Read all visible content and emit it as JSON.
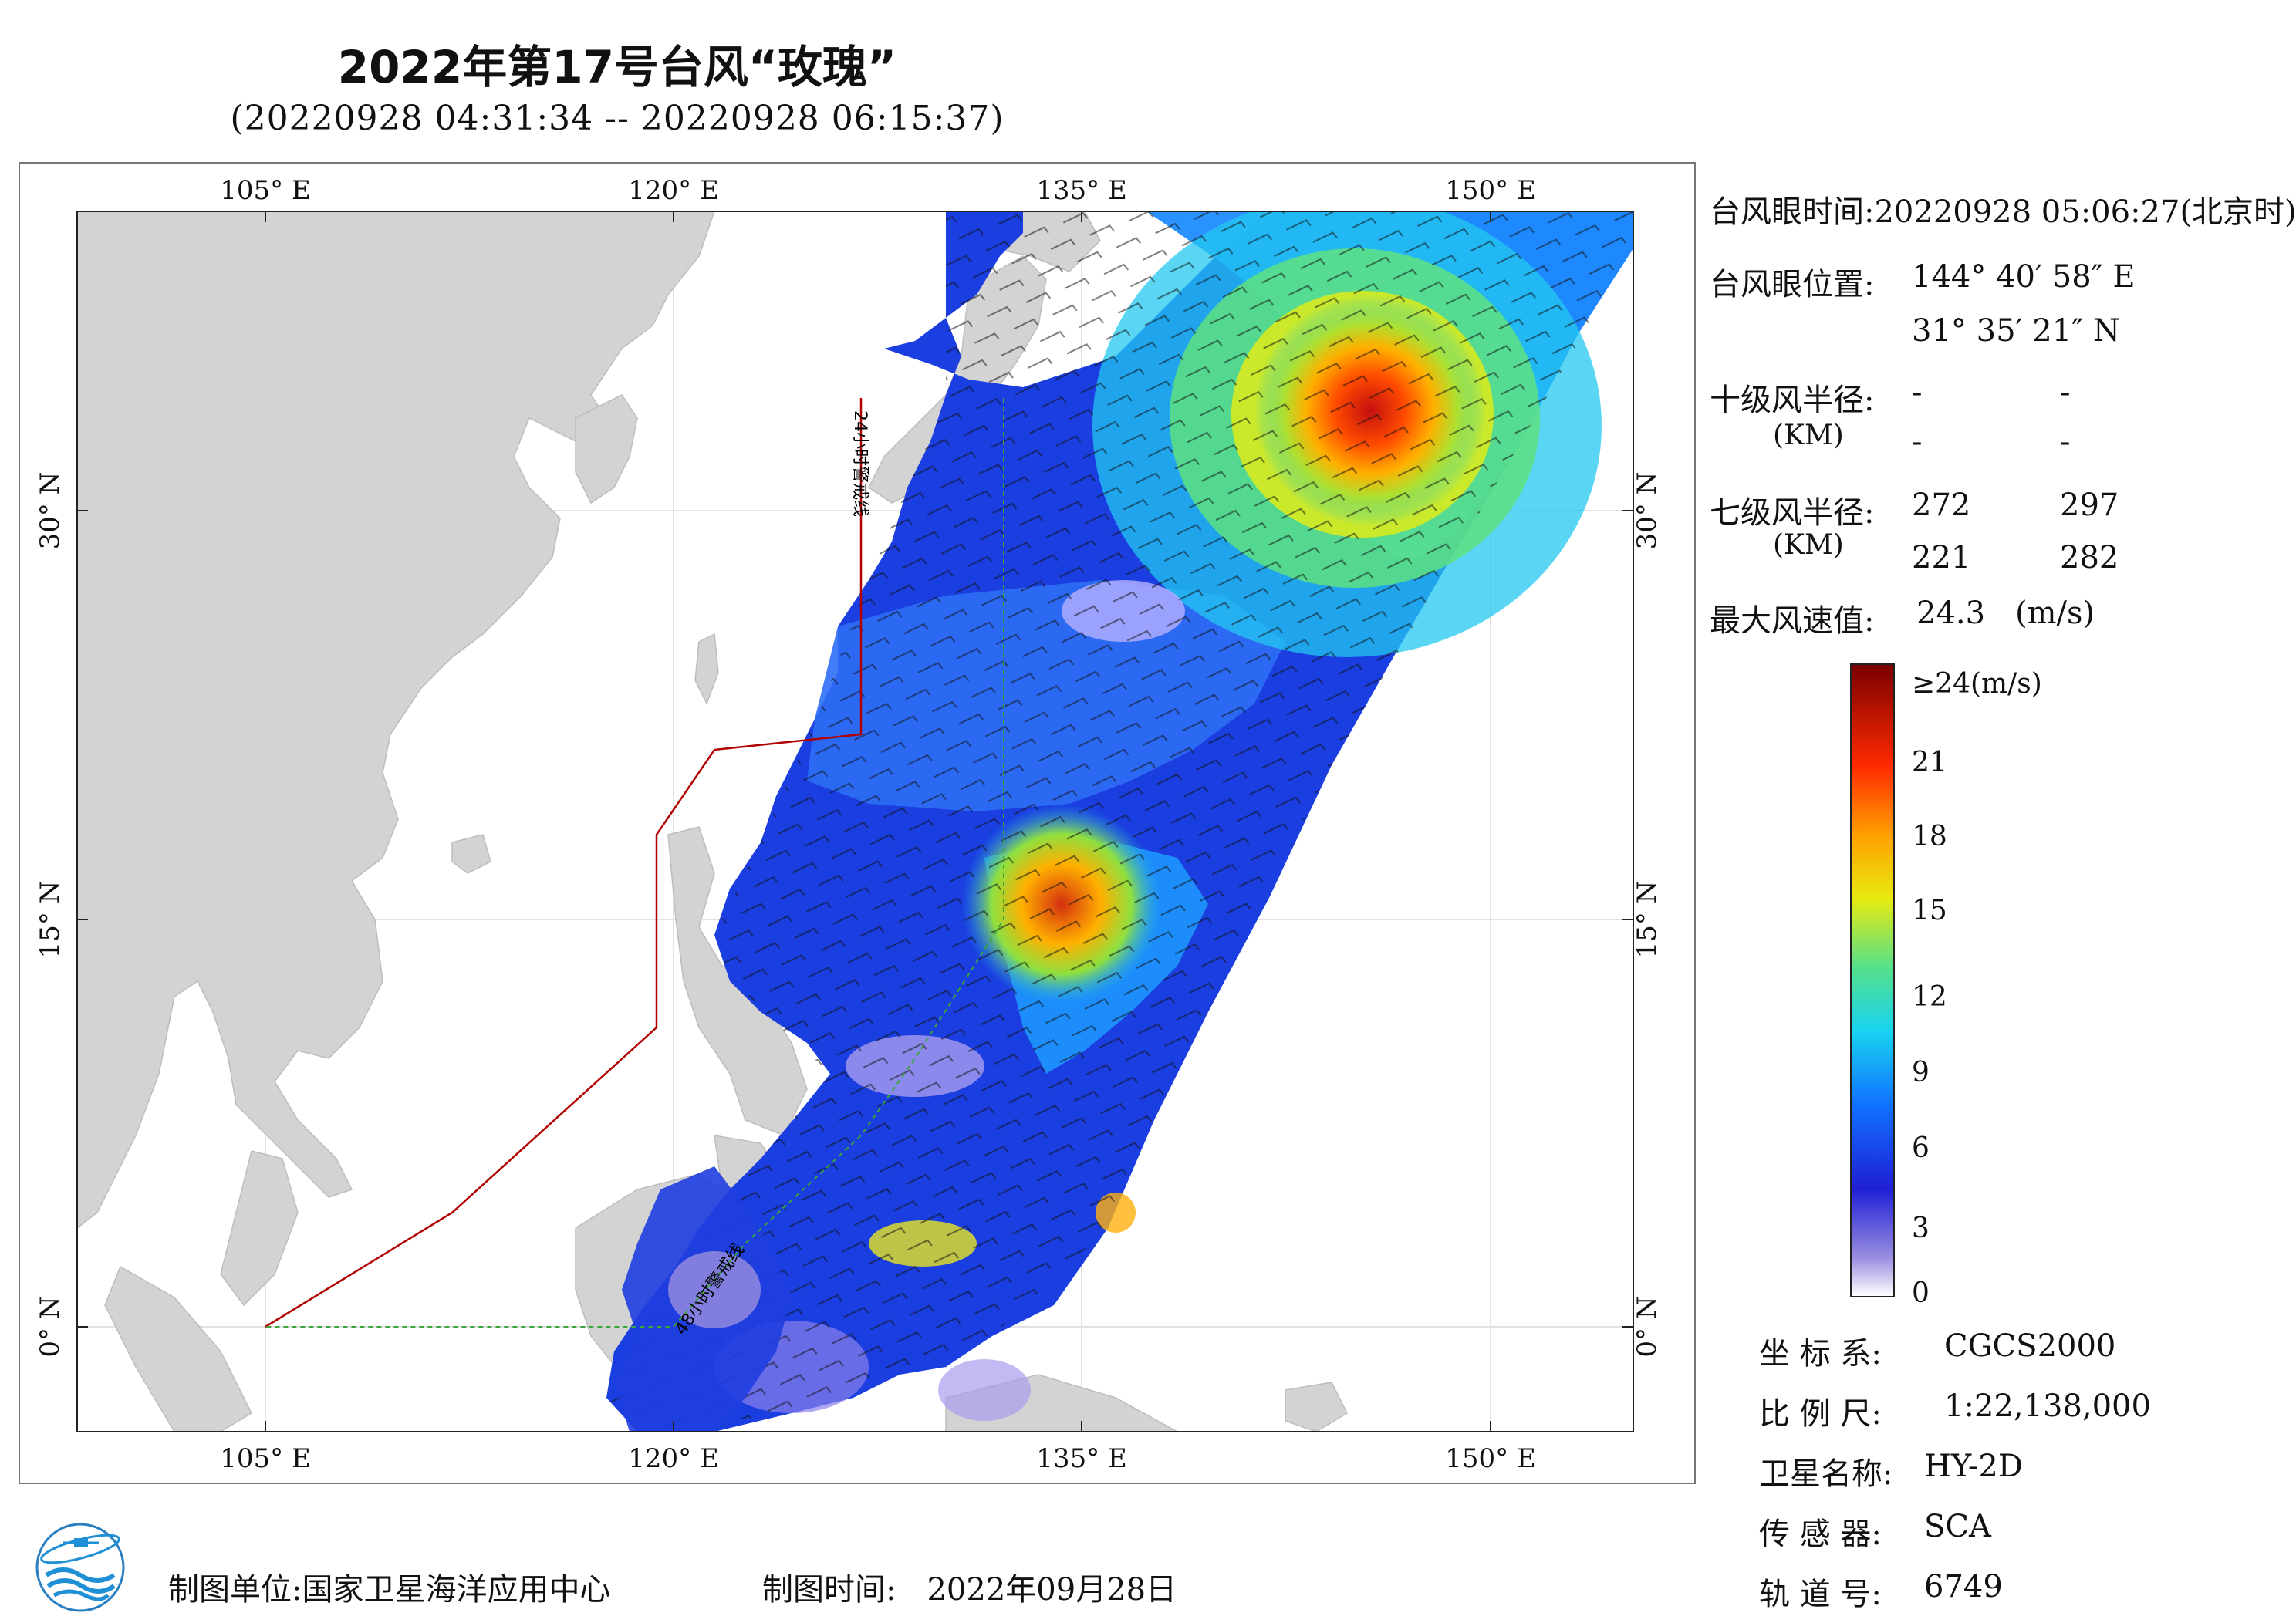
{
  "header": {
    "title": "2022年第17号台风“玫瑰”",
    "subtitle": "(20220928 04:31:34 -- 20220928 06:15:37)"
  },
  "map": {
    "lon_labels": [
      "105° E",
      "120° E",
      "135° E",
      "150° E"
    ],
    "lat_labels": [
      "30° N",
      "15° N",
      "0° N"
    ],
    "warning_line_24h": "24小时警戒线",
    "warning_line_48h": "48小时警戒线",
    "colors": {
      "land": "#d3d3d3",
      "sea": "#ffffff",
      "warning_24h": "#b00000",
      "warning_48h": "#3aa63a"
    }
  },
  "info": {
    "eye_time_label": "台风眼时间:",
    "eye_time_value": "20220928 05:06:27(北京时)",
    "eye_pos_label": "台风眼位置:",
    "eye_pos_lon": "144° 40′ 58″ E",
    "eye_pos_lat": "31° 35′ 21″ N",
    "r10_label": "十级风半径:",
    "r10_unit": "(KM)",
    "r10_values": [
      "-",
      "-",
      "-",
      "-"
    ],
    "r7_label": "七级风半径:",
    "r7_unit": "(KM)",
    "r7_values": [
      "272",
      "297",
      "221",
      "282"
    ],
    "max_wind_label": "最大风速值:",
    "max_wind_value": "24.3",
    "max_wind_unit": "(m/s)"
  },
  "colorbar": {
    "labels": [
      "≥24(m/s)",
      "21",
      "18",
      "15",
      "12",
      "9",
      "6",
      "3",
      "0"
    ],
    "stops": [
      "#ffffff",
      "#9a8ee0",
      "#1f1fd6",
      "#1070ff",
      "#19d3f0",
      "#55e08a",
      "#e8ea10",
      "#ffa000",
      "#ff2a00",
      "#7a0000"
    ]
  },
  "meta": {
    "crs_label": "坐 标 系:",
    "crs_value": "CGCS2000",
    "scale_label": "比 例 尺:",
    "scale_value": "1:22,138,000",
    "satellite_label": "卫星名称:",
    "satellite_value": "HY-2D",
    "sensor_label": "传 感 器:",
    "sensor_value": "SCA",
    "orbit_label": "轨 道 号:",
    "orbit_value": "6749"
  },
  "footer": {
    "org_label": "制图单位:",
    "org_value": "国家卫星海洋应用中心",
    "date_label": "制图时间:",
    "date_value": "2022年09月28日"
  }
}
